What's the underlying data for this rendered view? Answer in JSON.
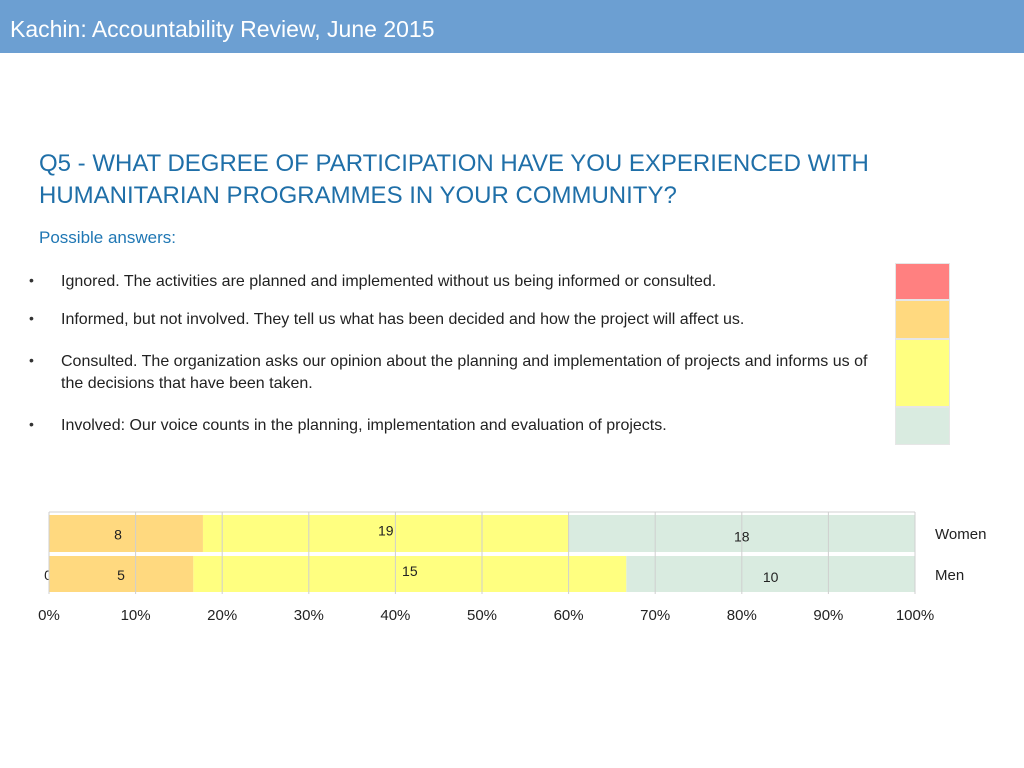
{
  "header": {
    "title": "Kachin: Accountability Review, June 2015"
  },
  "question": {
    "text": "Q5 - WHAT DEGREE OF PARTICIPATION HAVE YOU EXPERIENCED WITH HUMANITARIAN PROGRAMMES IN YOUR COMMUNITY?"
  },
  "possible_answers": {
    "label": "Possible answers:",
    "items": [
      {
        "text": "Ignored. The activities are planned and implemented without us being informed or consulted.",
        "color": "#ff8080"
      },
      {
        "text": "Informed, but not involved. They tell us what has been decided and how the project will affect us.",
        "color": "#ffd97f"
      },
      {
        "text": "Consulted. The organization asks our opinion about the planning and implementation of projects and informs us of the decisions that have been taken.",
        "color": "#ffff80"
      },
      {
        "text": "Involved: Our voice counts in the planning, implementation and evaluation of projects.",
        "color": "#d9ebe0"
      }
    ]
  },
  "chart_data": {
    "type": "bar",
    "orientation": "horizontal",
    "stacked": "percent",
    "categories": [
      "Women",
      "Men"
    ],
    "series": [
      {
        "name": "Ignored",
        "color": "#ff8080",
        "values": [
          0,
          0
        ]
      },
      {
        "name": "Informed, but not involved",
        "color": "#ffd97f",
        "values": [
          8,
          5
        ]
      },
      {
        "name": "Consulted",
        "color": "#ffff80",
        "values": [
          19,
          15
        ]
      },
      {
        "name": "Involved",
        "color": "#d9ebe0",
        "values": [
          18,
          10
        ]
      }
    ],
    "xticks": [
      "0%",
      "10%",
      "20%",
      "30%",
      "40%",
      "50%",
      "60%",
      "70%",
      "80%",
      "90%",
      "100%"
    ],
    "xlim": [
      0,
      100
    ],
    "grid": true
  }
}
